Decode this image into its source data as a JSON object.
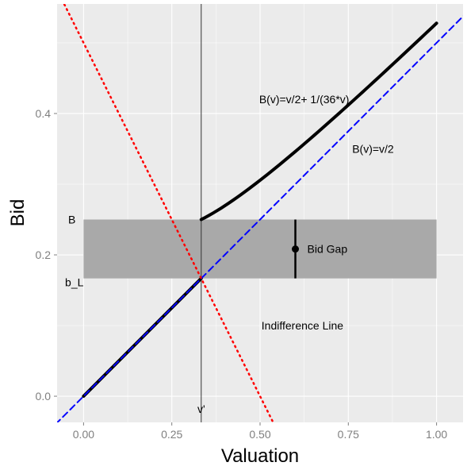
{
  "chart_data": {
    "type": "line",
    "xlabel": "Valuation",
    "ylabel": "Bid",
    "xlim": [
      -0.075,
      1.075
    ],
    "ylim": [
      -0.037,
      0.555
    ],
    "x_ticks": [
      0,
      0.25,
      0.5,
      0.75,
      1
    ],
    "x_tick_labels": [
      "0.00",
      "0.25",
      "0.50",
      "0.75",
      "1.00"
    ],
    "y_ticks": [
      0,
      0.2,
      0.4
    ],
    "y_tick_labels": [
      "0.0",
      "0.2",
      "0.4"
    ],
    "grid": true,
    "background": "#ebebeb",
    "series": [
      {
        "kind": "equilibrium-bid-low",
        "style": "solid",
        "color": "#000000",
        "x": [
          0,
          0.3333
        ],
        "y": [
          0,
          0.1667
        ]
      },
      {
        "kind": "equilibrium-bid-high",
        "style": "solid",
        "color": "#000000",
        "formula_x_start": 0.3333,
        "formula_x_end": 1.0,
        "formula_samples": 60
      },
      {
        "kind": "linear-bid",
        "style": "dashed",
        "color": "#0000ff",
        "x": [
          -0.1,
          1.1
        ],
        "y": [
          -0.05,
          0.55
        ]
      },
      {
        "kind": "indifference-line",
        "style": "dotted",
        "color": "#ff0000",
        "x": [
          -0.1,
          0.6
        ],
        "y": [
          0.6,
          -0.1
        ]
      }
    ],
    "vline": {
      "x": 0.3333,
      "label": "v'"
    },
    "band": {
      "x": [
        0,
        1
      ],
      "y": [
        0.1667,
        0.25
      ],
      "color": "#a9a9a9",
      "label_top": "B",
      "label_bottom": "b_L"
    },
    "gap": {
      "x": 0.6,
      "y_low": 0.1667,
      "y_high": 0.25,
      "point_y": 0.2083,
      "label": "Bid Gap"
    },
    "annotations": [
      {
        "text": "B(v)=v/2+ 1/(36*v)",
        "x": 0.625,
        "y": 0.42
      },
      {
        "text": "B(v)=v/2",
        "x": 0.82,
        "y": 0.35
      },
      {
        "text": "Indifference Line",
        "x": 0.62,
        "y": 0.1
      }
    ]
  }
}
